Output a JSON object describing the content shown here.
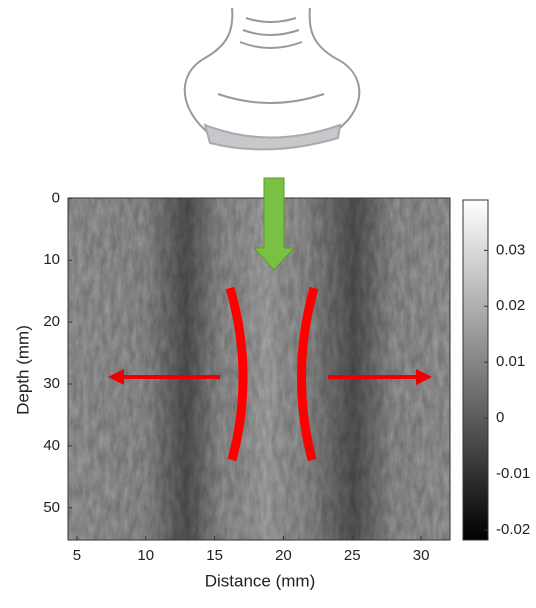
{
  "chart_data": {
    "type": "heatmap",
    "xlabel": "Distance (mm)",
    "ylabel": "Depth (mm)",
    "xlim": [
      4.35,
      32.1
    ],
    "xticks": [
      5,
      10,
      15,
      20,
      25,
      30
    ],
    "ylim": [
      -0.05,
      55.2
    ],
    "yticks": [
      0,
      10,
      20,
      30,
      40,
      50
    ],
    "clim": [
      -0.0218,
      0.039
    ],
    "cticks": [
      -0.02,
      -0.01,
      0,
      0.01,
      0.02,
      0.03
    ],
    "colormap": [
      "#000000",
      "#ffffff"
    ]
  }
}
